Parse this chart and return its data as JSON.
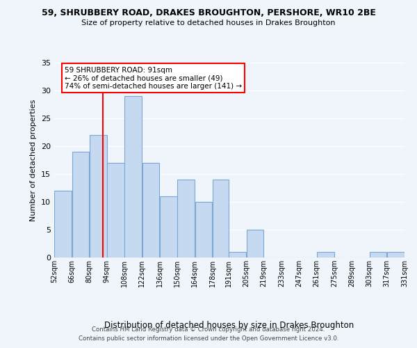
{
  "title": "59, SHRUBBERY ROAD, DRAKES BROUGHTON, PERSHORE, WR10 2BE",
  "subtitle": "Size of property relative to detached houses in Drakes Broughton",
  "xlabel": "Distribution of detached houses by size in Drakes Broughton",
  "ylabel": "Number of detached properties",
  "bar_edges": [
    52,
    66,
    80,
    94,
    108,
    122,
    136,
    150,
    164,
    178,
    191,
    205,
    219,
    233,
    247,
    261,
    275,
    289,
    303,
    317,
    331
  ],
  "bar_heights": [
    12,
    19,
    22,
    17,
    29,
    17,
    11,
    14,
    10,
    14,
    1,
    5,
    0,
    0,
    0,
    1,
    0,
    0,
    1,
    1
  ],
  "bar_color": "#c5d9f0",
  "bar_edgecolor": "#7ba7d4",
  "ylim": [
    0,
    35
  ],
  "yticks": [
    0,
    5,
    10,
    15,
    20,
    25,
    30,
    35
  ],
  "property_line_x": 91,
  "annotation_line1": "59 SHRUBBERY ROAD: 91sqm",
  "annotation_line2": "← 26% of detached houses are smaller (49)",
  "annotation_line3": "74% of semi-detached houses are larger (141) →",
  "footer_line1": "Contains HM Land Registry data © Crown copyright and database right 2024.",
  "footer_line2": "Contains public sector information licensed under the Open Government Licence v3.0.",
  "background_color": "#f0f5fc",
  "plot_background": "#f0f5fc",
  "grid_color": "#ffffff",
  "tick_labels": [
    "52sqm",
    "66sqm",
    "80sqm",
    "94sqm",
    "108sqm",
    "122sqm",
    "136sqm",
    "150sqm",
    "164sqm",
    "178sqm",
    "191sqm",
    "205sqm",
    "219sqm",
    "233sqm",
    "247sqm",
    "261sqm",
    "275sqm",
    "289sqm",
    "303sqm",
    "317sqm",
    "331sqm"
  ]
}
